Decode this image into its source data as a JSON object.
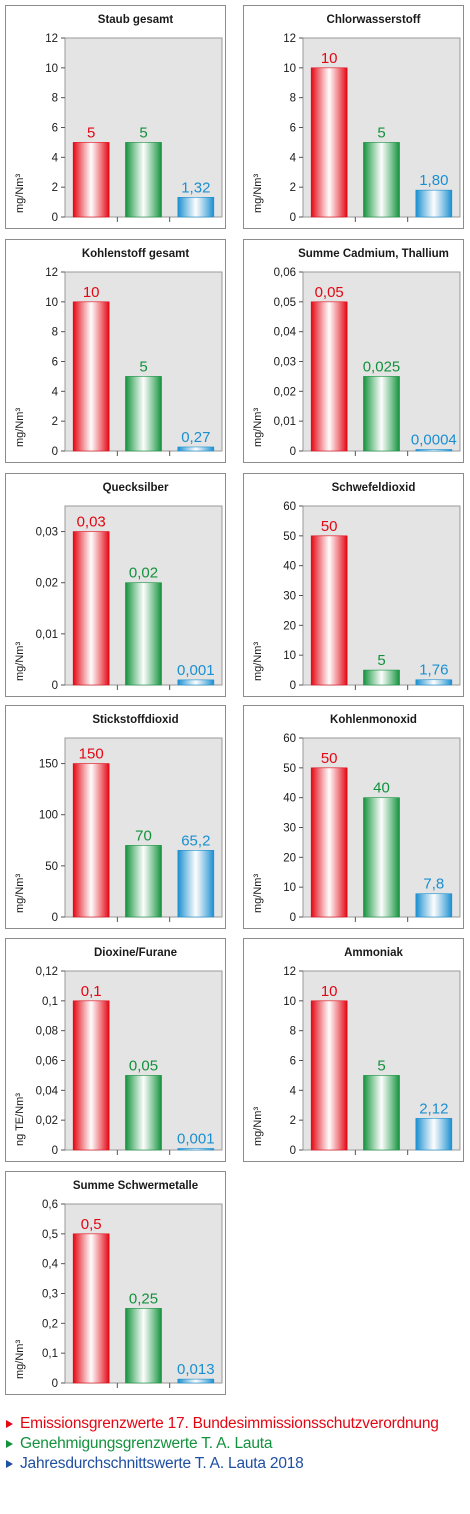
{
  "colors": {
    "red": "#e30613",
    "green": "#12923c",
    "blue": "#1a8fd0",
    "legend_red": "#e30613",
    "legend_green": "#12923c",
    "legend_blue": "#1f4fa0"
  },
  "chart_data": [
    {
      "type": "bar",
      "title": "Staub gesamt",
      "ylabel": "mg/Nm³",
      "ylim": [
        0,
        12
      ],
      "ticks": [
        "0",
        "2",
        "4",
        "6",
        "8",
        "10",
        "12"
      ],
      "tick_values": [
        0,
        2,
        4,
        6,
        8,
        10,
        12
      ],
      "values": [
        5,
        5,
        1.32
      ],
      "labels": [
        "5",
        "5",
        "1,32"
      ],
      "grid": false,
      "legend": "bottom"
    },
    {
      "type": "bar",
      "title": "Chlorwasserstoff",
      "ylabel": "mg/Nm³",
      "ylim": [
        0,
        12
      ],
      "ticks": [
        "0",
        "2",
        "4",
        "6",
        "8",
        "10",
        "12"
      ],
      "tick_values": [
        0,
        2,
        4,
        6,
        8,
        10,
        12
      ],
      "values": [
        10,
        5,
        1.8
      ],
      "labels": [
        "10",
        "5",
        "1,80"
      ],
      "grid": false
    },
    {
      "type": "bar",
      "title": "Kohlenstoff gesamt",
      "ylabel": "mg/Nm³",
      "ylim": [
        0,
        12
      ],
      "ticks": [
        "0",
        "2",
        "4",
        "6",
        "8",
        "10",
        "12"
      ],
      "tick_values": [
        0,
        2,
        4,
        6,
        8,
        10,
        12
      ],
      "values": [
        10,
        5,
        0.27
      ],
      "labels": [
        "10",
        "5",
        "0,27"
      ],
      "grid": false
    },
    {
      "type": "bar",
      "title": "Summe Cadmium, Thallium",
      "ylabel": "mg/Nm³",
      "ylim": [
        0,
        0.06
      ],
      "ticks": [
        "0",
        "0,01",
        "0,02",
        "0,03",
        "0,04",
        "0,05",
        "0,06"
      ],
      "tick_values": [
        0,
        0.01,
        0.02,
        0.03,
        0.04,
        0.05,
        0.06
      ],
      "values": [
        0.05,
        0.025,
        0.0004
      ],
      "labels": [
        "0,05",
        "0,025",
        "0,0004"
      ],
      "grid": false
    },
    {
      "type": "bar",
      "title": "Quecksilber",
      "ylabel": "mg/Nm³",
      "ylim": [
        0,
        0.035
      ],
      "ticks": [
        "0",
        "0,01",
        "0,02",
        "0,03"
      ],
      "tick_values": [
        0,
        0.01,
        0.02,
        0.03
      ],
      "values": [
        0.03,
        0.02,
        0.001
      ],
      "labels": [
        "0,03",
        "0,02",
        "0,001"
      ],
      "grid": false
    },
    {
      "type": "bar",
      "title": "Schwefeldioxid",
      "ylabel": "mg/Nm³",
      "ylim": [
        0,
        60
      ],
      "ticks": [
        "0",
        "10",
        "20",
        "30",
        "40",
        "50",
        "60"
      ],
      "tick_values": [
        0,
        10,
        20,
        30,
        40,
        50,
        60
      ],
      "values": [
        50,
        5,
        1.76
      ],
      "labels": [
        "50",
        "5",
        "1,76"
      ],
      "grid": false
    },
    {
      "type": "bar",
      "title": "Stickstoffdioxid",
      "ylabel": "mg/Nm³",
      "ylim": [
        0,
        175
      ],
      "ticks": [
        "0",
        "50",
        "100",
        "150"
      ],
      "tick_values": [
        0,
        50,
        100,
        150
      ],
      "values": [
        150,
        70,
        65.2
      ],
      "labels": [
        "150",
        "70",
        "65,2"
      ],
      "grid": false
    },
    {
      "type": "bar",
      "title": "Kohlenmonoxid",
      "ylabel": "mg/Nm³",
      "ylim": [
        0,
        60
      ],
      "ticks": [
        "0",
        "10",
        "20",
        "30",
        "40",
        "50",
        "60"
      ],
      "tick_values": [
        0,
        10,
        20,
        30,
        40,
        50,
        60
      ],
      "values": [
        50,
        40,
        7.8
      ],
      "labels": [
        "50",
        "40",
        "7,8"
      ],
      "grid": false
    },
    {
      "type": "bar",
      "title": "Dioxine/Furane",
      "ylabel": "ng TE/Nm³",
      "ylim": [
        0,
        0.12
      ],
      "ticks": [
        "0",
        "0,02",
        "0,04",
        "0,06",
        "0,08",
        "0,1",
        "0,12"
      ],
      "tick_values": [
        0,
        0.02,
        0.04,
        0.06,
        0.08,
        0.1,
        0.12
      ],
      "values": [
        0.1,
        0.05,
        0.001
      ],
      "labels": [
        "0,1",
        "0,05",
        "0,001"
      ],
      "grid": false
    },
    {
      "type": "bar",
      "title": "Ammoniak",
      "ylabel": "mg/Nm³",
      "ylim": [
        0,
        12
      ],
      "ticks": [
        "0",
        "2",
        "4",
        "6",
        "8",
        "10",
        "12"
      ],
      "tick_values": [
        0,
        2,
        4,
        6,
        8,
        10,
        12
      ],
      "values": [
        10,
        5,
        2.12
      ],
      "labels": [
        "10",
        "5",
        "2,12"
      ],
      "grid": false
    },
    {
      "type": "bar",
      "title": "Summe Schwermetalle",
      "ylabel": "mg/Nm³",
      "ylim": [
        0,
        0.6
      ],
      "ticks": [
        "0",
        "0,1",
        "0,2",
        "0,3",
        "0,4",
        "0,5",
        "0,6"
      ],
      "tick_values": [
        0,
        0.1,
        0.2,
        0.3,
        0.4,
        0.5,
        0.6
      ],
      "values": [
        0.5,
        0.25,
        0.013
      ],
      "labels": [
        "0,5",
        "0,25",
        "0,013"
      ],
      "grid": false
    }
  ],
  "legend": {
    "items": [
      {
        "label": "Emissionsgrenzwerte 17. Bundesimmissionsschutzverordnung",
        "color": "#e30613"
      },
      {
        "label": "Genehmigungsgrenzwerte T. A. Lauta",
        "color": "#12923c"
      },
      {
        "label": "Jahresdurchschnittswerte T. A. Lauta 2018",
        "color": "#1f4fa0"
      }
    ]
  }
}
